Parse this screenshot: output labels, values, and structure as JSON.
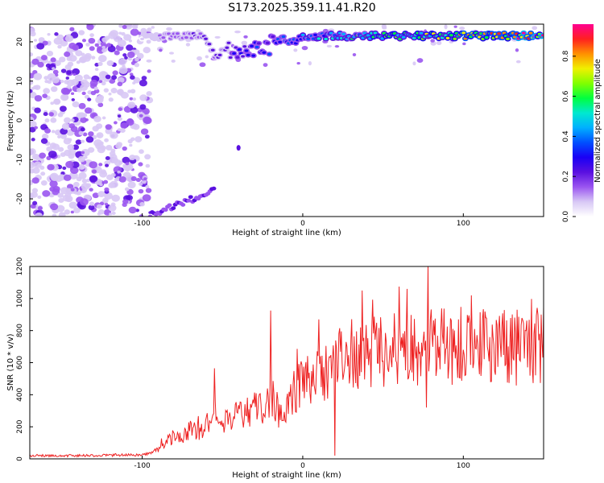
{
  "figure": {
    "title": "S173.2025.359.11.41.R20"
  },
  "colors": {
    "snr_line": "#ee2222",
    "axis": "#000000",
    "colormap": [
      "#ffffff",
      "#d8c8f5",
      "#9a55f0",
      "#5a10e0",
      "#1a00f5",
      "#0050ff",
      "#00b0ff",
      "#00e8d0",
      "#00ff40",
      "#80ff00",
      "#f0f000",
      "#ff9000",
      "#ff2020",
      "#ff0090"
    ]
  },
  "chart_data": [
    {
      "type": "heatmap",
      "title": "S173.2025.359.11.41.R20",
      "xlabel": "Height of straight line (km)",
      "ylabel": "Frequency (Hz)",
      "xlim": [
        -170,
        150
      ],
      "ylim": [
        -24.5,
        24.5
      ],
      "x_ticks": [
        -100,
        0,
        100
      ],
      "y_ticks": [
        -20,
        -10,
        0,
        10,
        20
      ],
      "colorbar": {
        "label": "Normalized spectral amplitude",
        "range": [
          0,
          0.96
        ],
        "ticks": [
          "0.0",
          "0.2",
          "0.4",
          "0.6",
          "0.8"
        ]
      },
      "features": [
        {
          "name": "broadband noise",
          "x_range": [
            -170,
            -100
          ],
          "y_range": [
            -24.5,
            24.5
          ],
          "amplitude": 0.12
        },
        {
          "name": "signal trace",
          "x_range": [
            -100,
            150
          ],
          "frequency": 21.5,
          "peak_amplitude": 0.95
        },
        {
          "name": "low-frequency trace",
          "x_range": [
            -95,
            -55
          ],
          "frequency": -22,
          "amplitude": 0.15
        }
      ]
    },
    {
      "type": "line",
      "title": "",
      "xlabel": "Height of straight line (km)",
      "ylabel": "SNR (10 * v/v)",
      "xlim": [
        -170,
        150
      ],
      "ylim": [
        0,
        1200
      ],
      "x_ticks": [
        -100,
        0,
        100
      ],
      "y_ticks": [
        0,
        200,
        400,
        600,
        800,
        1000,
        1200
      ],
      "series": [
        {
          "x": [
            -170,
            -150,
            -130,
            -110,
            -100,
            -95,
            -90,
            -85,
            -80,
            -75,
            -70,
            -65,
            -60,
            -55,
            -50,
            -45,
            -40,
            -35,
            -30,
            -25,
            -20,
            -15,
            -10,
            -5,
            0,
            5,
            10,
            15,
            20,
            25,
            30,
            40,
            50,
            60,
            70,
            80,
            90,
            100,
            110,
            120,
            130,
            140,
            150
          ],
          "y": [
            20,
            20,
            20,
            25,
            25,
            35,
            60,
            110,
            150,
            140,
            180,
            170,
            220,
            240,
            240,
            260,
            300,
            280,
            320,
            300,
            350,
            300,
            330,
            420,
            460,
            500,
            500,
            560,
            580,
            620,
            650,
            660,
            680,
            700,
            690,
            700,
            700,
            710,
            700,
            700,
            700,
            710,
            710
          ],
          "spikes": [
            {
              "x": -55,
              "y": 565
            },
            {
              "x": -20,
              "y": 925
            },
            {
              "x": 10,
              "y": 870
            },
            {
              "x": 20,
              "y": 20
            },
            {
              "x": 37,
              "y": 1050
            },
            {
              "x": 65,
              "y": 1060
            },
            {
              "x": 78,
              "y": 1200
            },
            {
              "x": 77,
              "y": 320
            }
          ]
        }
      ]
    }
  ]
}
